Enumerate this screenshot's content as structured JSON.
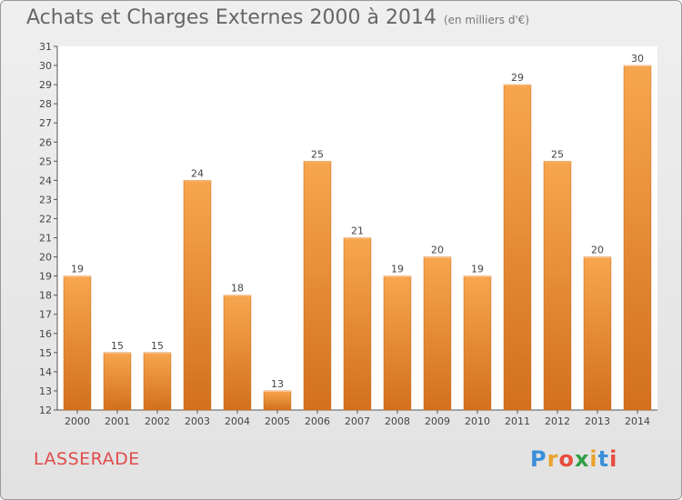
{
  "header": {
    "title": "Achats et Charges Externes 2000 à 2014",
    "subtitle": "(en milliers d'€)"
  },
  "commune": "LASSERADE",
  "logo": {
    "text": "Proxiti",
    "colors": [
      "#3a8fd9",
      "#e8a22c",
      "#e84c3d",
      "#2f9e44",
      "#e8a22c",
      "#3a8fd9",
      "#e84c3d"
    ]
  },
  "chart_data": {
    "type": "bar",
    "title": "Achats et Charges Externes 2000 à 2014",
    "subtitle": "(en milliers d'€)",
    "categories": [
      "2000",
      "2001",
      "2002",
      "2003",
      "2004",
      "2005",
      "2006",
      "2007",
      "2008",
      "2009",
      "2010",
      "2011",
      "2012",
      "2013",
      "2014"
    ],
    "values": [
      19,
      15,
      15,
      24,
      18,
      13,
      25,
      21,
      19,
      20,
      19,
      29,
      25,
      20,
      30
    ],
    "ylim": [
      12,
      31
    ],
    "yticks": [
      12,
      13,
      14,
      15,
      16,
      17,
      18,
      19,
      20,
      21,
      22,
      23,
      24,
      25,
      26,
      27,
      28,
      29,
      30,
      31
    ],
    "grid": false,
    "bar_color_top": "#f7a64f",
    "bar_color_bottom": "#d2701d"
  }
}
